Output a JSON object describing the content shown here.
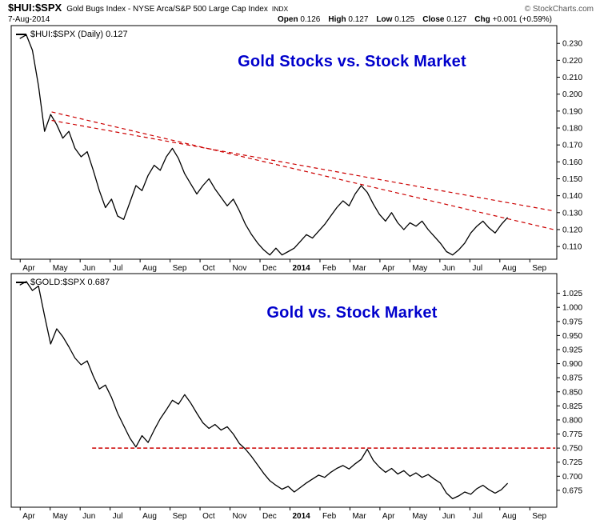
{
  "header": {
    "symbol": "$HUI:$SPX",
    "description": "Gold Bugs Index - NYSE Arca/S&P 500 Large Cap Index",
    "exchange": "INDX",
    "copyright": "© StockCharts.com",
    "date": "7-Aug-2014",
    "quote_items": [
      {
        "label": "Open",
        "value": "0.126"
      },
      {
        "label": "High",
        "value": "0.127"
      },
      {
        "label": "Low",
        "value": "0.125"
      },
      {
        "label": "Close",
        "value": "0.127"
      },
      {
        "label": "Chg",
        "value": "+0.001 (+0.59%)"
      }
    ]
  },
  "chart_data": [
    {
      "type": "line",
      "title": "Gold Stocks vs. Stock Market",
      "legend": "$HUI:$SPX (Daily) 0.127",
      "series_color": "#000000",
      "annotation_color": "#cc0000",
      "x_tick_labels": [
        "Apr",
        "May",
        "Jun",
        "Jul",
        "Aug",
        "Sep",
        "Oct",
        "Nov",
        "Dec",
        "2014",
        "Feb",
        "Mar",
        "Apr",
        "May",
        "Jun",
        "Jul",
        "Aug",
        "Sep"
      ],
      "xlim": [
        -0.3,
        17.9
      ],
      "ylim": [
        0.1025,
        0.2405
      ],
      "y_ticks": [
        0.23,
        0.22,
        0.21,
        0.2,
        0.19,
        0.18,
        0.17,
        0.16,
        0.15,
        0.14,
        0.13,
        0.12,
        0.11
      ],
      "x_start": 0,
      "x_end": 16.25,
      "series": [
        {
          "name": "$HUI:$SPX",
          "values": [
            0.233,
            0.235,
            0.226,
            0.205,
            0.178,
            0.188,
            0.182,
            0.174,
            0.178,
            0.168,
            0.163,
            0.166,
            0.155,
            0.143,
            0.133,
            0.138,
            0.128,
            0.126,
            0.136,
            0.146,
            0.143,
            0.152,
            0.158,
            0.155,
            0.163,
            0.168,
            0.162,
            0.153,
            0.147,
            0.141,
            0.146,
            0.15,
            0.144,
            0.139,
            0.134,
            0.138,
            0.131,
            0.123,
            0.117,
            0.112,
            0.108,
            0.105,
            0.109,
            0.105,
            0.107,
            0.109,
            0.113,
            0.117,
            0.115,
            0.119,
            0.123,
            0.128,
            0.133,
            0.137,
            0.134,
            0.141,
            0.146,
            0.142,
            0.135,
            0.129,
            0.125,
            0.13,
            0.124,
            0.12,
            0.124,
            0.122,
            0.125,
            0.12,
            0.116,
            0.112,
            0.107,
            0.105,
            0.108,
            0.112,
            0.118,
            0.122,
            0.125,
            0.121,
            0.118,
            0.123,
            0.127
          ]
        }
      ],
      "annotations": [
        {
          "type": "trendline",
          "x1": 1.05,
          "y1": 0.1895,
          "x2": 17.8,
          "y2": 0.12,
          "color": "#cc0000",
          "dash": "5,4",
          "width": 1.2
        },
        {
          "type": "trendline",
          "x1": 1.05,
          "y1": 0.1845,
          "x2": 17.8,
          "y2": 0.131,
          "color": "#cc0000",
          "dash": "5,4",
          "width": 1.2
        }
      ]
    },
    {
      "type": "line",
      "title": "Gold vs. Stock Market",
      "legend": "$GOLD:$SPX 0.687",
      "series_color": "#000000",
      "annotation_color": "#cc0000",
      "x_tick_labels": [
        "Apr",
        "May",
        "Jun",
        "Jul",
        "Aug",
        "Sep",
        "Oct",
        "Nov",
        "Dec",
        "2014",
        "Feb",
        "Mar",
        "Apr",
        "May",
        "Jun",
        "Jul",
        "Aug",
        "Sep"
      ],
      "xlim": [
        -0.3,
        17.9
      ],
      "ylim": [
        0.645,
        1.06
      ],
      "y_ticks": [
        1.025,
        1.0,
        0.975,
        0.95,
        0.925,
        0.9,
        0.875,
        0.85,
        0.825,
        0.8,
        0.775,
        0.75,
        0.725,
        0.7,
        0.675
      ],
      "x_start": 0,
      "x_end": 16.25,
      "series": [
        {
          "name": "$GOLD:$SPX",
          "values": [
            1.04,
            1.046,
            1.03,
            1.038,
            0.985,
            0.935,
            0.962,
            0.948,
            0.93,
            0.91,
            0.898,
            0.905,
            0.878,
            0.855,
            0.862,
            0.84,
            0.812,
            0.79,
            0.768,
            0.752,
            0.772,
            0.76,
            0.782,
            0.802,
            0.818,
            0.835,
            0.828,
            0.845,
            0.83,
            0.812,
            0.795,
            0.785,
            0.792,
            0.782,
            0.788,
            0.775,
            0.758,
            0.748,
            0.735,
            0.72,
            0.705,
            0.692,
            0.684,
            0.677,
            0.682,
            0.672,
            0.68,
            0.688,
            0.695,
            0.702,
            0.698,
            0.707,
            0.714,
            0.719,
            0.713,
            0.722,
            0.73,
            0.748,
            0.728,
            0.716,
            0.707,
            0.714,
            0.704,
            0.71,
            0.7,
            0.706,
            0.698,
            0.703,
            0.695,
            0.688,
            0.67,
            0.66,
            0.665,
            0.672,
            0.668,
            0.678,
            0.684,
            0.676,
            0.67,
            0.676,
            0.687
          ]
        }
      ],
      "annotations": [
        {
          "type": "support-line",
          "x1": 2.4,
          "y1": 0.75,
          "x2": 17.85,
          "y2": 0.75,
          "color": "#cc0000",
          "dash": "5,3",
          "width": 1.6
        }
      ]
    }
  ]
}
